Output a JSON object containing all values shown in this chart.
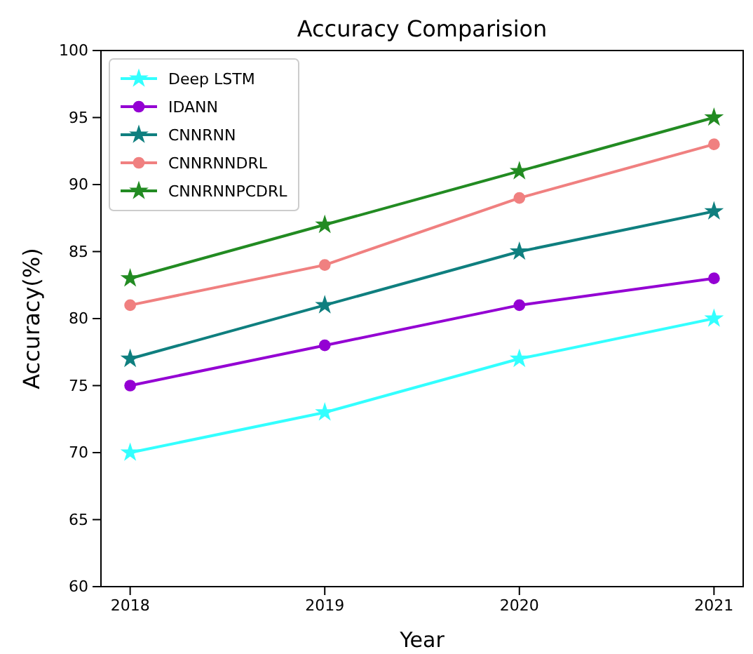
{
  "chart_data": {
    "type": "line",
    "title": "Accuracy Comparision",
    "xlabel": "Year",
    "ylabel": "Accuracy(%)",
    "x": [
      2018,
      2019,
      2020,
      2021
    ],
    "xlim": [
      2017.85,
      2021.15
    ],
    "xticks": [
      2018,
      2019,
      2020,
      2021
    ],
    "ylim": [
      60,
      100
    ],
    "yticks": [
      60,
      65,
      70,
      75,
      80,
      85,
      90,
      95,
      100
    ],
    "grid": false,
    "legend": "top left",
    "line_style": "solid",
    "series": [
      {
        "name": "Deep LSTM",
        "color": "#33ffff",
        "marker": "star",
        "values": [
          70,
          73,
          77,
          80
        ]
      },
      {
        "name": "IDANN",
        "color": "#9400d3",
        "marker": "circle",
        "values": [
          75,
          78,
          81,
          83
        ]
      },
      {
        "name": "CNNRNN",
        "color": "#0f7f7f",
        "marker": "star",
        "values": [
          77,
          81,
          85,
          88
        ]
      },
      {
        "name": "CNNRNNDRL",
        "color": "#f08080",
        "marker": "circle",
        "values": [
          81,
          84,
          89,
          93
        ]
      },
      {
        "name": "CNNRNNPCDRL",
        "color": "#228b22",
        "marker": "star",
        "values": [
          83,
          87,
          91,
          95
        ]
      }
    ]
  }
}
